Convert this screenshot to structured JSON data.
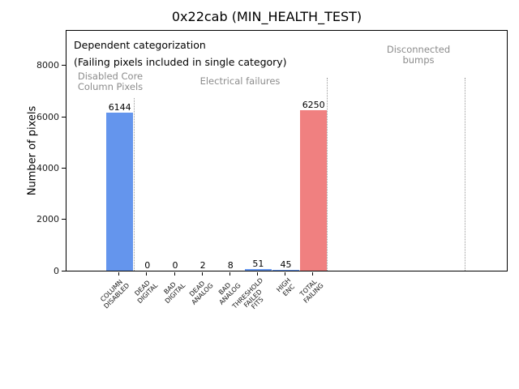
{
  "colors": {
    "blue": "#6495ED",
    "red": "#F08080",
    "gray_label": "#8c8c8c",
    "divider": "#999999",
    "axis": "#000000"
  },
  "chart_data": {
    "type": "bar",
    "title": "0x22cab (MIN_HEALTH_TEST)",
    "ylabel": "Number of pixels",
    "xlabel": "",
    "categories": [
      "COLUMN\nDISABLED",
      "DEAD\nDIGITAL",
      "BAD\nDIGITAL",
      "DEAD\nANALOG",
      "BAD\nANALOG",
      "THRESHOLD\nFAILED\nFITS",
      "HIGH\nENC",
      "TOTAL\nFAILING"
    ],
    "values": [
      6144,
      0,
      0,
      2,
      8,
      51,
      45,
      6250
    ],
    "bar_value_labels": [
      "6144",
      "0",
      "0",
      "2",
      "8",
      "51",
      "45",
      "6250"
    ],
    "bar_colors": [
      "blue",
      "blue",
      "blue",
      "blue",
      "blue",
      "blue",
      "blue",
      "red"
    ],
    "yticks": [
      0,
      2000,
      4000,
      6000,
      8000
    ],
    "ylim": [
      0,
      9349
    ],
    "grid": false,
    "legend": null,
    "annotations": {
      "dependent_note": "Dependent categorization\n(Failing pixels included in single category)",
      "sections": [
        {
          "label": "Disabled Core\nColumn Pixels"
        },
        {
          "label": "Electrical failures"
        },
        {
          "label": "Disconnected\nbumps"
        }
      ]
    },
    "dividers": [
      {
        "x": 0.54,
        "top_frac": 0.72
      },
      {
        "x": 7.51,
        "top_frac": 0.805
      },
      {
        "x": 12.49,
        "top_frac": 0.805
      }
    ]
  }
}
